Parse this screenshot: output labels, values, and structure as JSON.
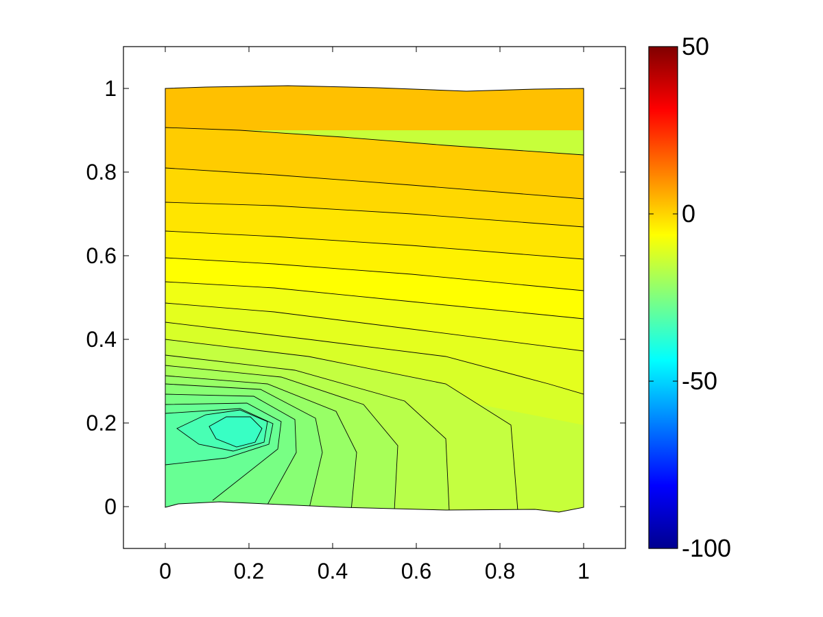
{
  "chart_data": {
    "type": "contourf",
    "title": "",
    "xlabel": "",
    "ylabel": "",
    "xlim": [
      -0.1,
      1.1
    ],
    "ylim": [
      -0.1,
      1.1
    ],
    "xticks": [
      "0",
      "0.2",
      "0.4",
      "0.6",
      "0.8",
      "1"
    ],
    "yticks": [
      "0",
      "0.2",
      "0.4",
      "0.6",
      "0.8",
      "1"
    ],
    "domain": {
      "x": [
        0,
        1
      ],
      "y": [
        0,
        1
      ]
    },
    "field_minimum": {
      "x": 0.18,
      "y": 0.19,
      "value": -45
    },
    "top_value": 3,
    "colorbar": {
      "colormap": "jet",
      "range": [
        -100,
        50
      ],
      "ticks": [
        "50",
        "0",
        "-50",
        "-100"
      ],
      "tick_values": [
        50,
        0,
        -50,
        -100
      ]
    }
  }
}
